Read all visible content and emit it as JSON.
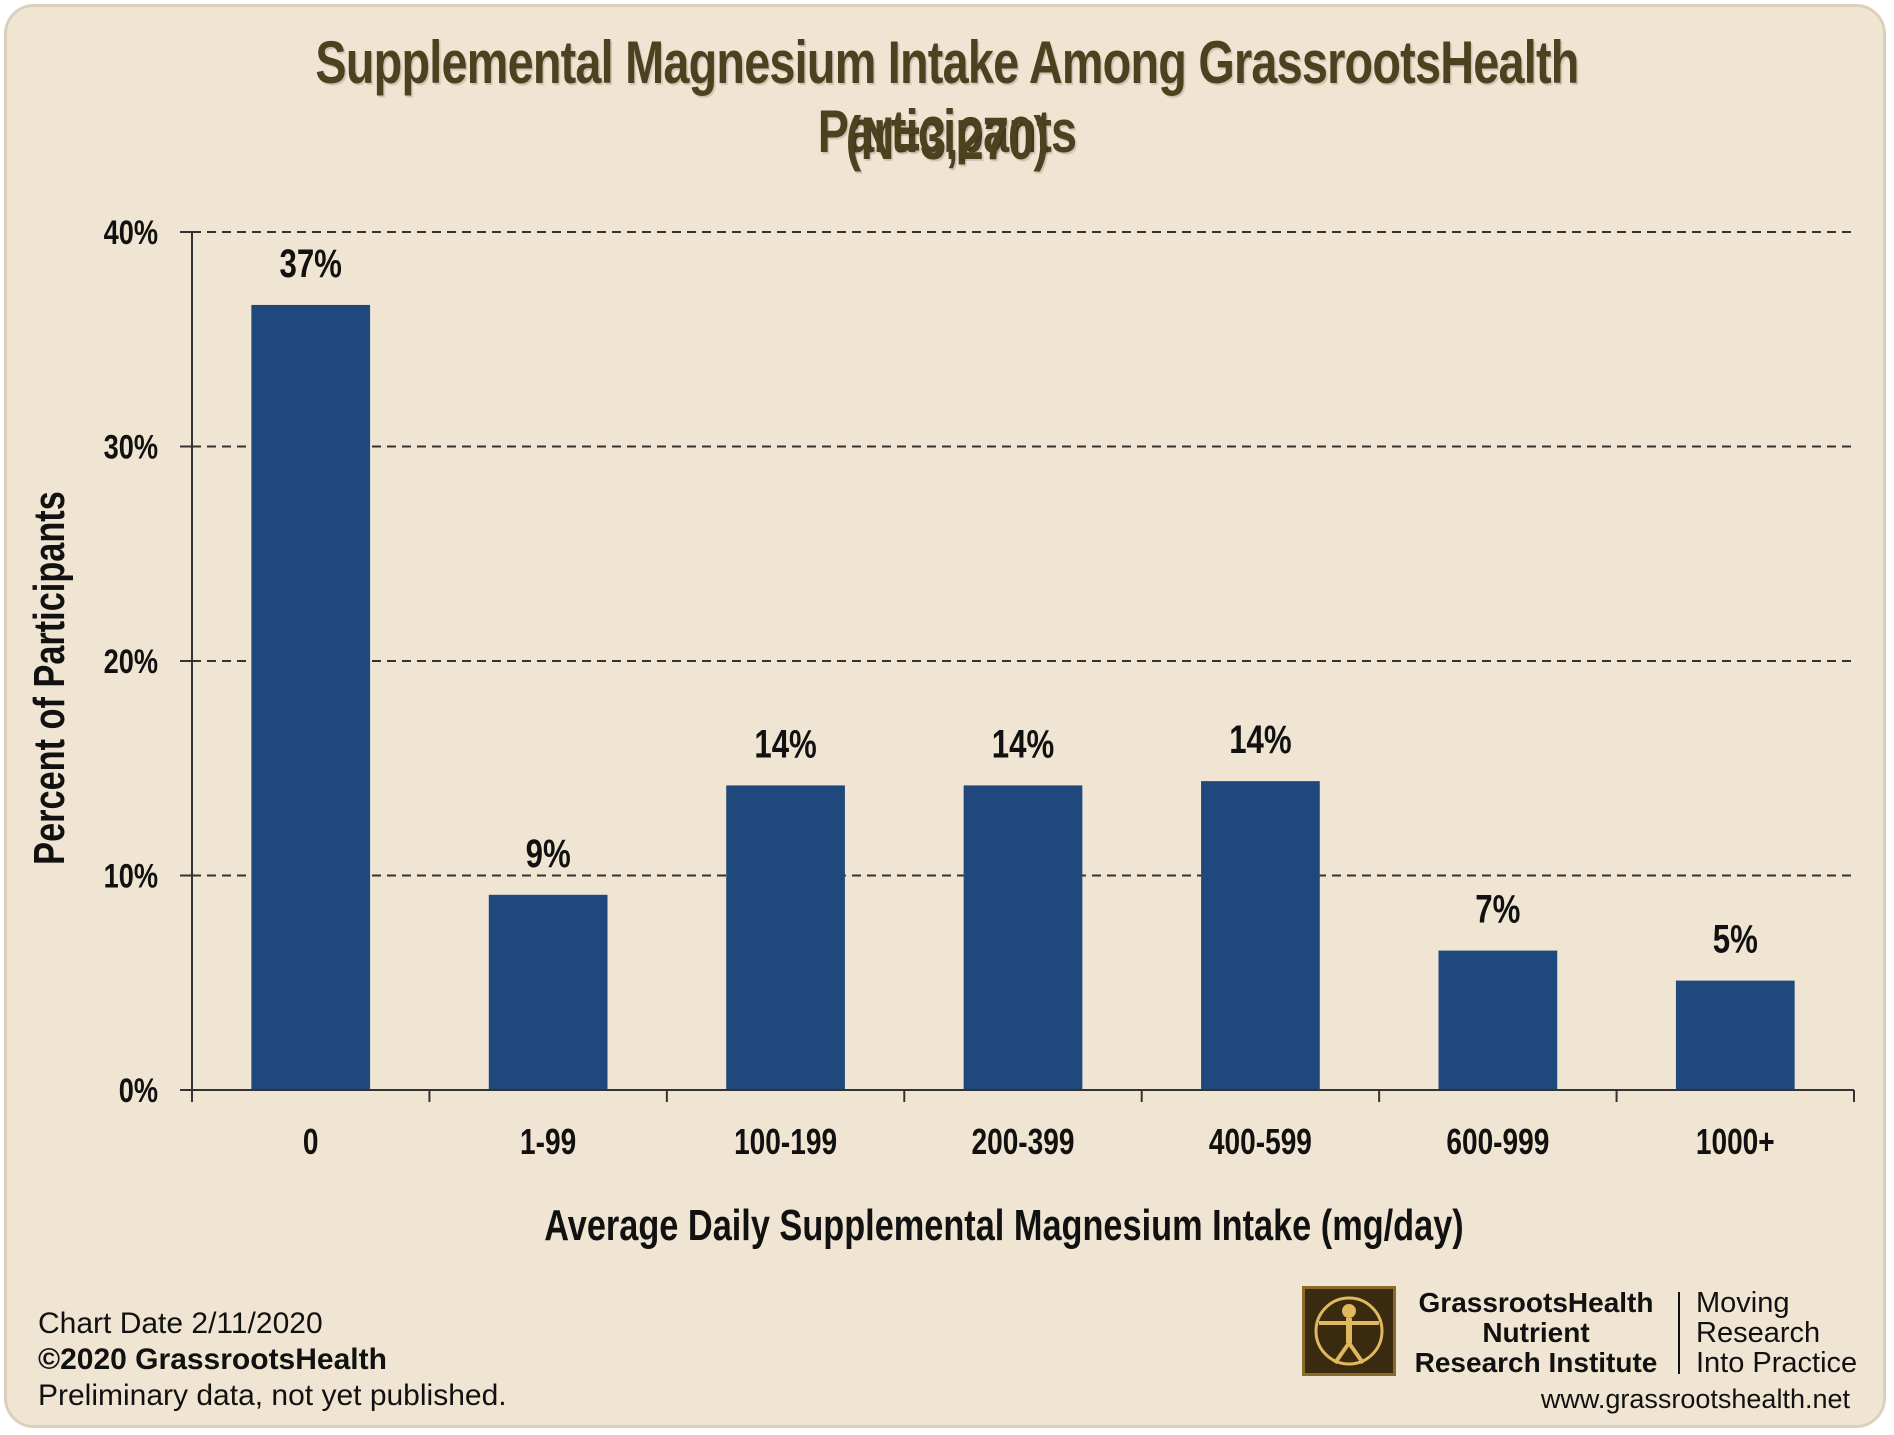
{
  "chart_data": {
    "type": "bar",
    "title": "Supplemental Magnesium Intake Among GrassrootsHealth Participants",
    "subtitle": "(N=3,270)",
    "xlabel": "Average Daily Supplemental Magnesium Intake (mg/day)",
    "ylabel": "Percent of Participants",
    "categories": [
      "0",
      "1-99",
      "100-199",
      "200-399",
      "400-599",
      "600-999",
      "1000+"
    ],
    "values": [
      36.6,
      9.1,
      14.2,
      14.2,
      14.4,
      6.5,
      5.1
    ],
    "data_labels": [
      "37%",
      "9%",
      "14%",
      "14%",
      "14%",
      "7%",
      "5%"
    ],
    "ylim": [
      0,
      40
    ],
    "yticks": [
      0,
      10,
      20,
      30,
      40
    ],
    "ytick_labels": [
      "0%",
      "10%",
      "20%",
      "30%",
      "40%"
    ],
    "grid": true,
    "gridline_style": "dashed",
    "legend": "none",
    "bar_color": "#1f497d"
  },
  "footer": {
    "chart_date": "Chart Date 2/11/2020",
    "copyright": "©2020 GrassrootsHealth",
    "note": "Preliminary data, not yet published.",
    "org_line1": "GrassrootsHealth",
    "org_line2": "Nutrient",
    "org_line3": "Research Institute",
    "tagline1": "Moving",
    "tagline2": "Research",
    "tagline3": "Into Practice",
    "website": "www.grassrootshealth.net"
  },
  "colors": {
    "background": "#f0e5d2",
    "title": "#4b4320",
    "bar": "#1f497d"
  },
  "logo_icon": "vitruvian-man-icon"
}
